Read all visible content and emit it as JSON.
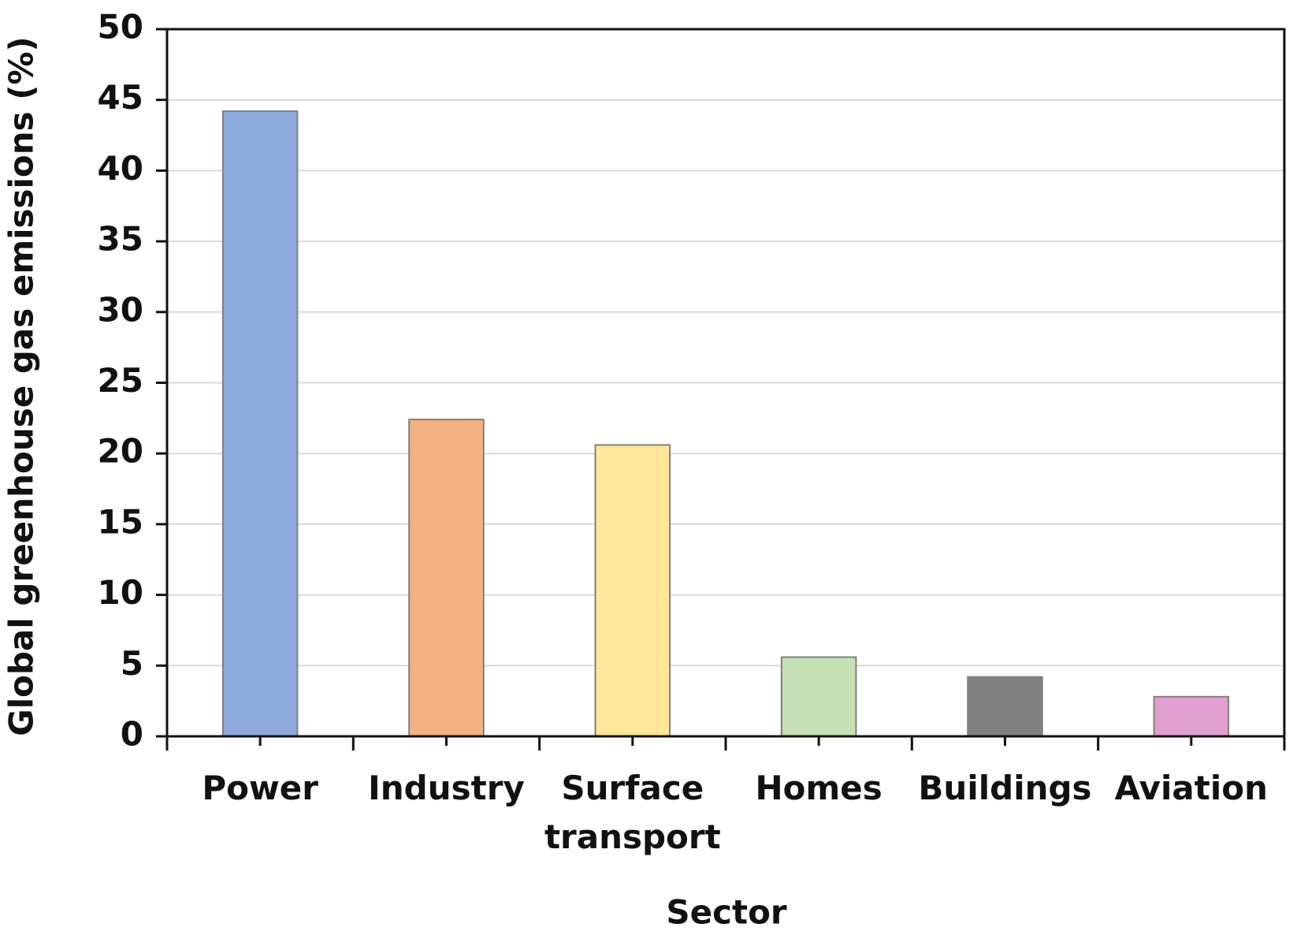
{
  "chart_data": {
    "type": "bar",
    "x_label": "Sector",
    "y_label": "Global greenhouse gas emissions (%)",
    "categories": [
      "Power",
      "Industry",
      "Surface transport",
      "Homes",
      "Buildings",
      "Aviation"
    ],
    "values": [
      44.2,
      22.4,
      20.6,
      5.6,
      4.2,
      2.8
    ],
    "colors": [
      "#8faadc",
      "#f4b183",
      "#ffe699",
      "#c5e0b4",
      "#808080",
      "#e1a0d0"
    ],
    "ylim": [
      0,
      50
    ],
    "yticks": [
      0,
      5,
      10,
      15,
      20,
      25,
      30,
      35,
      40,
      45,
      50
    ],
    "grid": true
  }
}
